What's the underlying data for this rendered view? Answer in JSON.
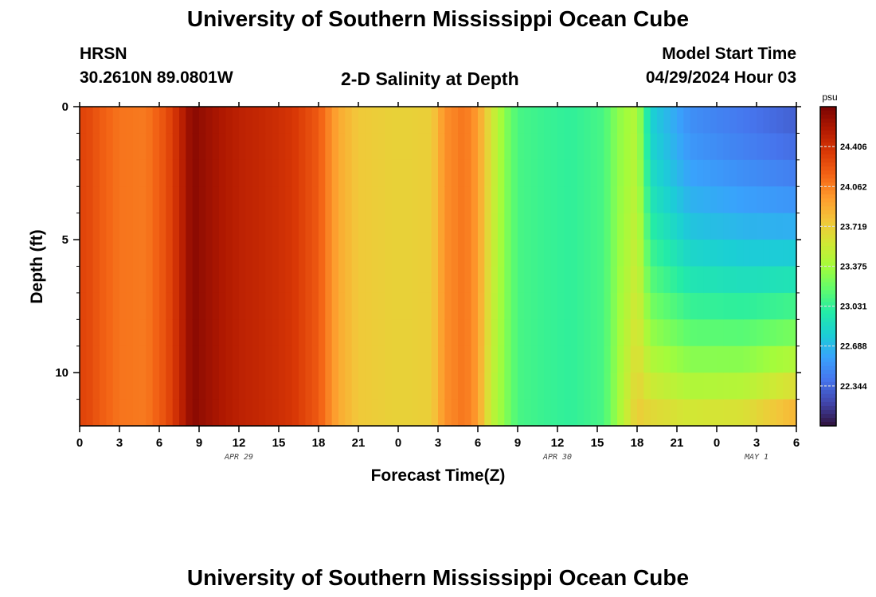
{
  "header": {
    "title": "University of Southern Mississippi Ocean Cube",
    "station": "HRSN",
    "coords": "30.2610N  89.0801W",
    "subtitle": "2-D Salinity at Depth",
    "model_start_label": "Model Start Time",
    "model_start_value": "04/29/2024 Hour 03",
    "footer_title": "University of Southern Mississippi Ocean Cube"
  },
  "chart_data": {
    "type": "heatmap",
    "title": "2-D Salinity at Depth",
    "xlabel": "Forecast Time(Z)",
    "ylabel": "Depth (ft)",
    "x_hours": [
      0,
      54
    ],
    "xticks": [
      "0",
      "3",
      "6",
      "9",
      "12",
      "15",
      "18",
      "21",
      "0",
      "3",
      "6",
      "9",
      "12",
      "15",
      "18",
      "21",
      "0",
      "3",
      "6"
    ],
    "date_labels": [
      "APR 29",
      "APR 30",
      "MAY 1"
    ],
    "date_label_hours": [
      12,
      36,
      51
    ],
    "yticks": [
      "0",
      "5",
      "10"
    ],
    "ylim": [
      0,
      12
    ],
    "y_reversed": true,
    "colorbar": {
      "unit": "psu",
      "min": 22.0,
      "max": 24.75,
      "ticks": [
        "24.406",
        "24.062",
        "23.719",
        "23.375",
        "23.031",
        "22.688",
        "22.344"
      ],
      "colors": [
        "#30123b",
        "#4145ab",
        "#4675ed",
        "#39a2fc",
        "#1bcfd4",
        "#24eca6",
        "#61fc6c",
        "#a4fc3b",
        "#d1e834",
        "#f3c63a",
        "#fe9b2d",
        "#f36315",
        "#d93806",
        "#b11901",
        "#7a0403"
      ]
    },
    "surface_profile": [
      {
        "h": 0.5,
        "v": 24.3
      },
      {
        "h": 1.5,
        "v": 24.2
      },
      {
        "h": 3.0,
        "v": 24.1
      },
      {
        "h": 5.0,
        "v": 24.08
      },
      {
        "h": 6.5,
        "v": 24.25
      },
      {
        "h": 7.5,
        "v": 24.45
      },
      {
        "h": 8.5,
        "v": 24.7
      },
      {
        "h": 10.0,
        "v": 24.6
      },
      {
        "h": 12.0,
        "v": 24.5
      },
      {
        "h": 14.0,
        "v": 24.45
      },
      {
        "h": 16.0,
        "v": 24.38
      },
      {
        "h": 18.0,
        "v": 24.2
      },
      {
        "h": 19.5,
        "v": 23.9
      },
      {
        "h": 21.0,
        "v": 23.75
      },
      {
        "h": 24.0,
        "v": 23.7
      },
      {
        "h": 26.5,
        "v": 23.72
      },
      {
        "h": 27.5,
        "v": 24.0
      },
      {
        "h": 29.0,
        "v": 24.1
      },
      {
        "h": 30.0,
        "v": 23.95
      },
      {
        "h": 31.0,
        "v": 23.6
      },
      {
        "h": 32.0,
        "v": 23.3
      },
      {
        "h": 33.0,
        "v": 23.1
      },
      {
        "h": 35.0,
        "v": 23.05
      },
      {
        "h": 37.0,
        "v": 23.02
      },
      {
        "h": 39.5,
        "v": 23.1
      },
      {
        "h": 40.5,
        "v": 23.3
      },
      {
        "h": 42.0,
        "v": 23.45
      },
      {
        "h": 43.0,
        "v": 22.8
      },
      {
        "h": 46.0,
        "v": 22.5
      },
      {
        "h": 50.0,
        "v": 22.4
      },
      {
        "h": 54.0,
        "v": 22.3
      }
    ],
    "bottom_profile": [
      {
        "h": 0.5,
        "v": 24.3
      },
      {
        "h": 1.5,
        "v": 24.2
      },
      {
        "h": 3.0,
        "v": 24.1
      },
      {
        "h": 5.0,
        "v": 24.08
      },
      {
        "h": 6.5,
        "v": 24.25
      },
      {
        "h": 7.5,
        "v": 24.45
      },
      {
        "h": 8.5,
        "v": 24.7
      },
      {
        "h": 10.0,
        "v": 24.6
      },
      {
        "h": 12.0,
        "v": 24.5
      },
      {
        "h": 14.0,
        "v": 24.45
      },
      {
        "h": 16.0,
        "v": 24.38
      },
      {
        "h": 18.0,
        "v": 24.2
      },
      {
        "h": 19.5,
        "v": 23.9
      },
      {
        "h": 21.0,
        "v": 23.75
      },
      {
        "h": 24.0,
        "v": 23.7
      },
      {
        "h": 26.5,
        "v": 23.72
      },
      {
        "h": 27.5,
        "v": 24.0
      },
      {
        "h": 29.0,
        "v": 24.1
      },
      {
        "h": 30.0,
        "v": 23.95
      },
      {
        "h": 31.0,
        "v": 23.5
      },
      {
        "h": 32.0,
        "v": 23.3
      },
      {
        "h": 33.0,
        "v": 23.1
      },
      {
        "h": 35.0,
        "v": 23.05
      },
      {
        "h": 37.0,
        "v": 23.02
      },
      {
        "h": 39.5,
        "v": 23.1
      },
      {
        "h": 42.0,
        "v": 23.75
      },
      {
        "h": 46.0,
        "v": 23.65
      },
      {
        "h": 50.0,
        "v": 23.7
      },
      {
        "h": 54.0,
        "v": 23.95
      }
    ]
  }
}
